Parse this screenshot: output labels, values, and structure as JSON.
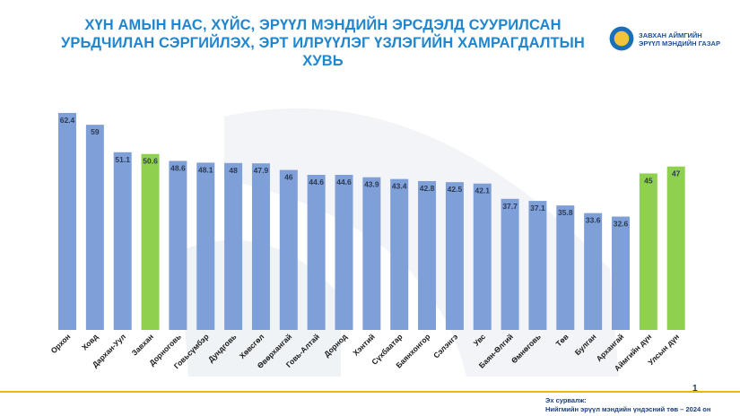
{
  "header": {
    "title": "ХҮН АМЫН НАС, ХҮЙС, ЭРҮҮЛ МЭНДИЙН ЭРСДЭЛД СУУРИЛСАН УРЬДЧИЛАН СЭРГИЙЛЭХ, ЭРТ ИЛРҮҮЛЭГ ҮЗЛЭГИЙН ХАМРАГДАЛТЫН ХУВЬ"
  },
  "logo": {
    "line1": "ЗАВХАН АЙМГИЙН",
    "line2": "ЭРҮҮЛ МЭНДИЙН ГАЗАР"
  },
  "footer": {
    "page_number": "1",
    "source_label": "Эх сурвалж:",
    "source_text": "Нийгмийн эрүүл мэндийн үндэсний төв – 2024 он"
  },
  "colors": {
    "bar_default": "#7f9fd8",
    "bar_highlight": "#8fd14f",
    "title": "#1f86d0",
    "footer_line": "#f2b705"
  },
  "chart_data": {
    "type": "bar",
    "title": "ХҮН АМЫН НАС, ХҮЙС, ЭРҮҮЛ МЭНДИЙН ЭРСДЭЛД СУУРИЛСАН УРЬДЧИЛАН СЭРГИЙЛЭХ, ЭРТ ИЛРҮҮЛЭГ ҮЗЛЭГИЙН ХАМРАГДАЛТЫН ХУВЬ",
    "categories": [
      "Орхон",
      "Ховд",
      "Дархан-Уул",
      "Завхан",
      "Дорноговь",
      "Говьсүмбэр",
      "Дундговь",
      "Хөвсгөл",
      "Өвөрхангай",
      "Говь-Алтай",
      "Дорнод",
      "Хэнтий",
      "Сүхбаатар",
      "Баянхонгор",
      "Сэлэнгэ",
      "Увс",
      "Баян-Өлгий",
      "Өмнөговь",
      "Төв",
      "Булган",
      "Архангай",
      "Аймгийн дүн",
      "Улсын дүн"
    ],
    "values": [
      62.4,
      59,
      51.1,
      50.6,
      48.6,
      48.1,
      48,
      47.9,
      46,
      44.6,
      44.6,
      43.9,
      43.4,
      42.8,
      42.5,
      42.1,
      37.7,
      37.1,
      35.8,
      33.6,
      32.6,
      45,
      47
    ],
    "value_labels": [
      "62.4",
      "59",
      "51.1",
      "50.6",
      "48.6",
      "48.1",
      "48",
      "47.9",
      "46",
      "44.6",
      "44.6",
      "43.9",
      "43.4",
      "42.8",
      "42.5",
      "42.1",
      "37.7",
      "37.1",
      "35.8",
      "33.6",
      "32.6",
      "45",
      "47"
    ],
    "highlighted": [
      false,
      false,
      false,
      true,
      false,
      false,
      false,
      false,
      false,
      false,
      false,
      false,
      false,
      false,
      false,
      false,
      false,
      false,
      false,
      false,
      false,
      true,
      true
    ],
    "ylim": [
      0,
      66
    ],
    "grid": false,
    "legend": "none"
  }
}
